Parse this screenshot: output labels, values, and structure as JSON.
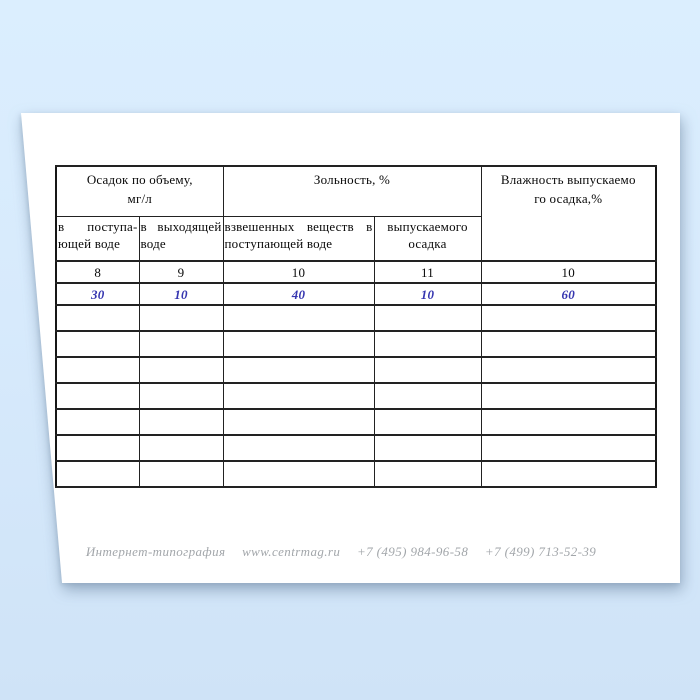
{
  "document": {
    "background_color": "#d6e9fb",
    "page_color": "#ffffff"
  },
  "table": {
    "group_headers": {
      "sediment": {
        "line1": "Осадок по объему,",
        "line2": "мг/л"
      },
      "ash": {
        "label": "Зольность, %"
      },
      "moisture": {
        "line1": "Влажность выпускаемо",
        "line2": "го осадка,%"
      }
    },
    "sub_headers": {
      "incoming_water": {
        "top": [
          "в",
          "поступа-"
        ],
        "bottom": "ющей воде"
      },
      "outgoing_water": {
        "top": [
          "в",
          "выходящей"
        ],
        "bottom": "воде"
      },
      "suspended_solids": {
        "top": [
          "взвешенных",
          "веществ",
          "в"
        ],
        "bottom": "поступающей воде"
      },
      "released_sludge": {
        "top": [
          "выпускаемого"
        ],
        "bottom": "осадка"
      }
    },
    "column_numbers": [
      "8",
      "9",
      "10",
      "11",
      "10"
    ],
    "entry_values": [
      "30",
      "10",
      "40",
      "10",
      "60"
    ],
    "entry_color": "#3636b0",
    "empty_row_count": 7
  },
  "footer": {
    "parts": [
      "Интернет-типография",
      "www.centrmag.ru",
      "+7 (495) 984-96-58",
      "+7 (499) 713-52-39"
    ]
  }
}
